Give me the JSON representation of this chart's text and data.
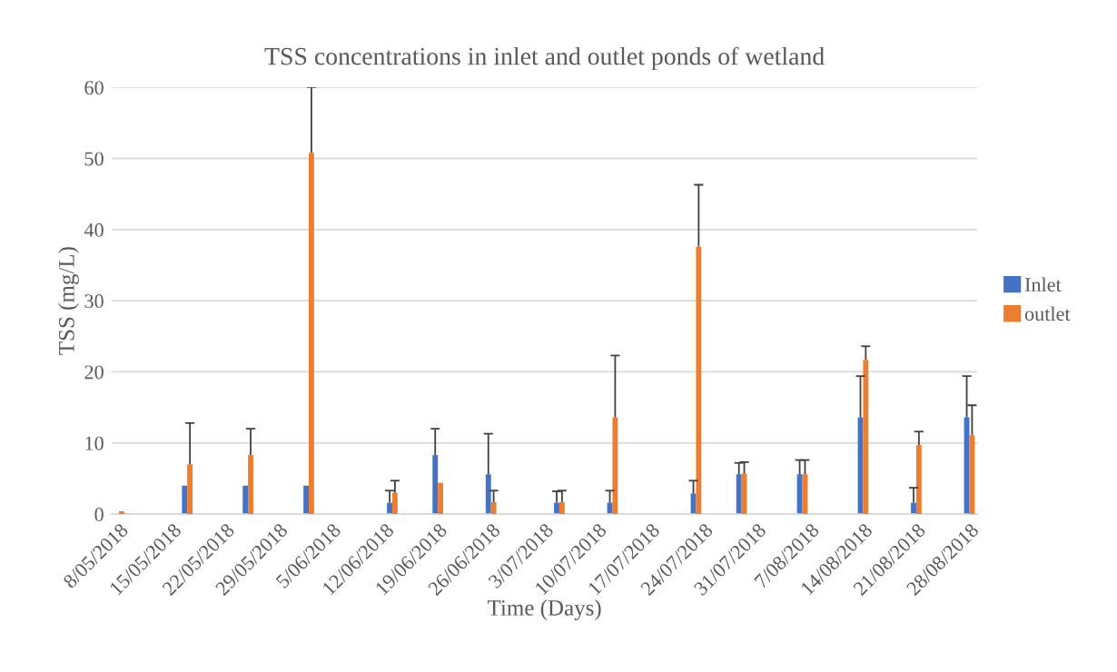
{
  "chart_data": {
    "type": "bar",
    "title": "TSS concentrations in inlet and outlet ponds of wetland",
    "xlabel": "Time (Days)",
    "ylabel": "TSS (mg/L)",
    "x": [
      "2018-05-08",
      "2018-05-17",
      "2018-05-25",
      "2018-06-02",
      "2018-06-13",
      "2018-06-19",
      "2018-06-26",
      "2018-07-05",
      "2018-07-12",
      "2018-07-23",
      "2018-07-29",
      "2018-08-06",
      "2018-08-14",
      "2018-08-21",
      "2018-08-28"
    ],
    "series": [
      {
        "name": "Inlet",
        "color": "#4472c4",
        "values": [
          null,
          4.0,
          4.0,
          4.0,
          1.6,
          8.3,
          5.6,
          1.6,
          1.6,
          2.9,
          5.6,
          5.6,
          13.6,
          1.6,
          13.6
        ],
        "errors": [
          null,
          null,
          null,
          null,
          [
            1.6,
            3.3
          ],
          [
            8.3,
            12.0
          ],
          [
            5.6,
            11.3
          ],
          [
            1.6,
            3.2
          ],
          [
            1.6,
            3.3
          ],
          [
            2.9,
            4.7
          ],
          [
            5.6,
            7.2
          ],
          [
            5.6,
            7.6
          ],
          [
            13.6,
            19.4
          ],
          [
            1.6,
            3.7
          ],
          [
            13.6,
            19.4
          ]
        ]
      },
      {
        "name": "outlet",
        "color": "#ed7d31",
        "values": [
          0.4,
          7.0,
          8.3,
          50.8,
          3.0,
          4.4,
          1.7,
          1.7,
          13.6,
          37.6,
          5.7,
          5.6,
          21.7,
          9.7,
          11.1
        ],
        "errors": [
          null,
          [
            7.0,
            12.8
          ],
          [
            8.3,
            12.0
          ],
          [
            50.8,
            60
          ],
          [
            3.0,
            4.7
          ],
          null,
          [
            1.7,
            3.3
          ],
          [
            1.7,
            3.3
          ],
          [
            13.6,
            22.3
          ],
          [
            37.6,
            46.3
          ],
          [
            5.7,
            7.3
          ],
          [
            5.6,
            7.6
          ],
          [
            21.7,
            23.6
          ],
          [
            9.7,
            11.6
          ],
          [
            11.1,
            15.3
          ]
        ]
      }
    ],
    "xlim": [
      "2018-05-07",
      "2018-08-29"
    ],
    "xticks": [
      {
        "value": "2018-05-08",
        "label": "8/05/2018"
      },
      {
        "value": "2018-05-15",
        "label": "15/05/2018"
      },
      {
        "value": "2018-05-22",
        "label": "22/05/2018"
      },
      {
        "value": "2018-05-29",
        "label": "29/05/2018"
      },
      {
        "value": "2018-06-05",
        "label": "5/06/2018"
      },
      {
        "value": "2018-06-12",
        "label": "12/06/2018"
      },
      {
        "value": "2018-06-19",
        "label": "19/06/2018"
      },
      {
        "value": "2018-06-26",
        "label": "26/06/2018"
      },
      {
        "value": "2018-07-03",
        "label": "3/07/2018"
      },
      {
        "value": "2018-07-10",
        "label": "10/07/2018"
      },
      {
        "value": "2018-07-17",
        "label": "17/07/2018"
      },
      {
        "value": "2018-07-24",
        "label": "24/07/2018"
      },
      {
        "value": "2018-07-31",
        "label": "31/07/2018"
      },
      {
        "value": "2018-08-07",
        "label": "7/08/2018"
      },
      {
        "value": "2018-08-14",
        "label": "14/08/2018"
      },
      {
        "value": "2018-08-21",
        "label": "21/08/2018"
      },
      {
        "value": "2018-08-28",
        "label": "28/08/2018"
      }
    ],
    "ylim": [
      0,
      60
    ],
    "yticks": [
      0,
      10,
      20,
      30,
      40,
      50,
      60
    ],
    "grid": "y",
    "legend": "right"
  }
}
